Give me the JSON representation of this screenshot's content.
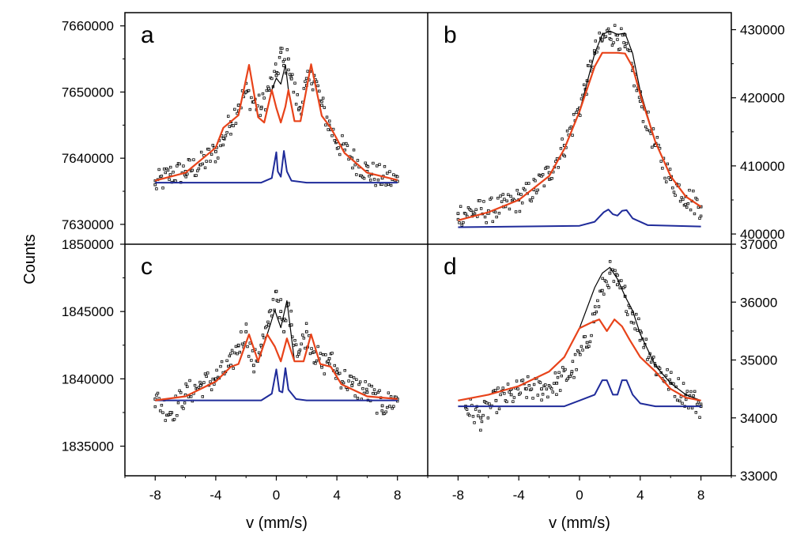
{
  "figure": {
    "ylabel": "Counts",
    "xlabel_left": "v (mm/s)",
    "xlabel_right": "v (mm/s)"
  },
  "colors": {
    "data_points": "#000000",
    "total_fit": "#000000",
    "main_component": "#e8431a",
    "doublet_component": "#1f2b9a"
  },
  "chart_data": [
    {
      "type": "scatter",
      "panel": "a",
      "panel_label": "a",
      "xlim": [
        -10,
        10
      ],
      "ylim": [
        7627000,
        7662000
      ],
      "yticks": [
        7630000,
        7640000,
        7650000,
        7660000
      ],
      "ytick_labels": [
        "7630000",
        "7640000",
        "7650000",
        "7660000"
      ],
      "xticks": [
        -8,
        -4,
        0,
        4,
        8
      ],
      "xtick_labels": [
        "-8",
        "-4",
        "0",
        "4",
        "8"
      ],
      "series": [
        {
          "role": "data",
          "x": [
            -8,
            -7,
            -6,
            -5,
            -4,
            -3.5,
            -3,
            -2.5,
            -2,
            -1.5,
            -1,
            -0.5,
            0,
            0.3,
            0.5,
            0.8,
            1,
            1.5,
            2,
            2.5,
            3,
            3.5,
            4,
            5,
            6,
            7,
            8
          ],
          "y": [
            7636000,
            7637500,
            7638000,
            7639000,
            7641000,
            7643000,
            7645500,
            7648000,
            7650000,
            7648500,
            7647500,
            7650500,
            7652500,
            7656000,
            7654000,
            7655000,
            7652000,
            7647500,
            7651000,
            7652500,
            7648000,
            7645000,
            7642500,
            7640000,
            7638000,
            7637000,
            7636500
          ]
        },
        {
          "role": "total_fit",
          "x": [
            -8,
            -6,
            -4,
            -3.5,
            -2.5,
            -1.8,
            -1.2,
            -0.8,
            -0.3,
            0,
            0.3,
            0.6,
            0.8,
            1.2,
            1.6,
            2.3,
            3,
            3.6,
            4.5,
            6,
            8
          ],
          "y": [
            7636600,
            7637800,
            7641600,
            7644600,
            7646500,
            7654100,
            7646200,
            7645400,
            7650300,
            7652100,
            7651200,
            7654100,
            7650300,
            7645600,
            7645600,
            7654200,
            7646400,
            7644600,
            7640800,
            7637800,
            7636700
          ]
        },
        {
          "role": "main_component",
          "x": [
            -8,
            -6,
            -4,
            -3.5,
            -2.5,
            -1.8,
            -1.2,
            -0.8,
            -0.3,
            0,
            0.3,
            0.6,
            0.8,
            1.2,
            1.6,
            2.3,
            3,
            3.6,
            4.5,
            6,
            8
          ],
          "y": [
            7636600,
            7637800,
            7641600,
            7644600,
            7646500,
            7654100,
            7646200,
            7645400,
            7650300,
            7647600,
            7645400,
            7647800,
            7650300,
            7645600,
            7645600,
            7654200,
            7646400,
            7644600,
            7640800,
            7637800,
            7636700
          ]
        },
        {
          "role": "doublet_component",
          "x": [
            -8,
            -1,
            -0.3,
            0,
            0.1,
            0.3,
            0.5,
            0.7,
            1,
            2,
            8
          ],
          "y": [
            7636300,
            7636300,
            7637000,
            7640900,
            7638000,
            7637200,
            7641100,
            7638000,
            7636600,
            7636300,
            7636300
          ]
        }
      ]
    },
    {
      "type": "scatter",
      "panel": "b",
      "panel_label": "b",
      "xlim": [
        -10,
        10
      ],
      "ylim": [
        398500,
        432500
      ],
      "yticks": [
        400000,
        410000,
        420000,
        430000
      ],
      "ytick_labels": [
        "400000",
        "410000",
        "420000",
        "430000"
      ],
      "xticks": [
        -8,
        -4,
        0,
        4,
        8
      ],
      "xtick_labels": [
        "-8",
        "-4",
        "0",
        "4",
        "8"
      ],
      "series": [
        {
          "role": "data",
          "x": [
            -8,
            -7,
            -6,
            -5,
            -4,
            -3,
            -2,
            -1,
            0,
            0.5,
            1,
            1.5,
            2,
            2.5,
            3,
            3.5,
            4,
            5,
            6,
            7,
            8
          ],
          "y": [
            403000,
            403200,
            403400,
            404000,
            405000,
            406500,
            409000,
            413000,
            418500,
            422500,
            426500,
            428500,
            429500,
            429200,
            427500,
            424000,
            419500,
            413000,
            408000,
            405500,
            404000
          ]
        },
        {
          "role": "total_fit",
          "x": [
            -8,
            -6,
            -4,
            -2,
            -1,
            0,
            1,
            1.5,
            2,
            2.5,
            3,
            3.5,
            4,
            5,
            6,
            7,
            8
          ],
          "y": [
            402000,
            403200,
            405000,
            408500,
            412500,
            418000,
            426500,
            429300,
            429800,
            429300,
            429500,
            426500,
            421000,
            413500,
            408500,
            405500,
            404000
          ]
        },
        {
          "role": "main_component",
          "x": [
            -8,
            -6,
            -4,
            -2,
            -1,
            0,
            1,
            1.5,
            2,
            2.5,
            3,
            3.5,
            4,
            5,
            6,
            7,
            8
          ],
          "y": [
            402000,
            403200,
            405000,
            408500,
            412500,
            418000,
            424600,
            426600,
            426600,
            426600,
            426500,
            424500,
            420500,
            413500,
            408500,
            405500,
            404000
          ]
        },
        {
          "role": "doublet_component",
          "x": [
            -8,
            0,
            1,
            1.6,
            1.9,
            2.2,
            2.5,
            2.8,
            3.1,
            3.5,
            4.5,
            8
          ],
          "y": [
            401000,
            401200,
            401800,
            403200,
            403600,
            402900,
            402700,
            403400,
            403500,
            402300,
            401300,
            401100
          ]
        }
      ]
    },
    {
      "type": "scatter",
      "panel": "c",
      "panel_label": "c",
      "xlim": [
        -10,
        10
      ],
      "ylim": [
        1832800,
        1850000
      ],
      "yticks": [
        1835000,
        1840000,
        1845000,
        1850000
      ],
      "ytick_labels": [
        "1835000",
        "1840000",
        "1845000",
        "1850000"
      ],
      "xticks": [
        -8,
        -4,
        0,
        4,
        8
      ],
      "xtick_labels": [
        "-8",
        "-4",
        "0",
        "4",
        "8"
      ],
      "series": [
        {
          "role": "data",
          "x": [
            -8,
            -7,
            -6,
            -5,
            -4,
            -3,
            -2.5,
            -2,
            -1.5,
            -1,
            -0.5,
            0,
            0.3,
            0.5,
            0.8,
            1,
            1.5,
            2,
            2.5,
            3,
            3.5,
            4,
            5,
            6,
            7,
            8
          ],
          "y": [
            1838500,
            1837500,
            1838800,
            1839500,
            1840000,
            1841000,
            1842500,
            1843500,
            1841000,
            1842500,
            1844000,
            1846500,
            1845000,
            1843500,
            1845500,
            1844000,
            1842000,
            1843500,
            1842000,
            1841000,
            1841500,
            1840500,
            1839500,
            1839000,
            1838000,
            1838500
          ]
        },
        {
          "role": "total_fit",
          "x": [
            -8,
            -6,
            -4,
            -3,
            -2.5,
            -1.8,
            -1.2,
            -0.6,
            -0.1,
            0.3,
            0.7,
            1.2,
            1.8,
            2.3,
            2.9,
            3.6,
            4.3,
            6,
            8
          ],
          "y": [
            1838400,
            1838700,
            1839800,
            1840900,
            1841100,
            1843300,
            1841300,
            1843300,
            1845100,
            1843800,
            1845800,
            1841300,
            1841300,
            1843300,
            1841100,
            1840900,
            1839600,
            1838700,
            1838500
          ]
        },
        {
          "role": "main_component",
          "x": [
            -8,
            -6,
            -4,
            -3,
            -2.5,
            -1.8,
            -1.2,
            -0.6,
            -0.1,
            0.3,
            0.7,
            1.2,
            1.8,
            2.3,
            2.9,
            3.6,
            4.3,
            6,
            8
          ],
          "y": [
            1838400,
            1838700,
            1839800,
            1840900,
            1841100,
            1843300,
            1841300,
            1843300,
            1842400,
            1841300,
            1843000,
            1841300,
            1841300,
            1843300,
            1841100,
            1840900,
            1839600,
            1838700,
            1838500
          ]
        },
        {
          "role": "doublet_component",
          "x": [
            -8,
            -1,
            -0.3,
            0,
            0.2,
            0.4,
            0.6,
            0.8,
            1.3,
            2,
            8
          ],
          "y": [
            1838400,
            1838400,
            1838900,
            1840700,
            1839100,
            1839000,
            1840800,
            1839200,
            1838500,
            1838400,
            1838400
          ]
        }
      ]
    },
    {
      "type": "scatter",
      "panel": "d",
      "panel_label": "d",
      "xlim": [
        -10,
        10
      ],
      "ylim": [
        33000,
        37000
      ],
      "yticks": [
        33000,
        34000,
        35000,
        36000,
        37000
      ],
      "ytick_labels": [
        "33000",
        "34000",
        "35000",
        "36000",
        "37000"
      ],
      "xticks": [
        -8,
        -4,
        0,
        4,
        8
      ],
      "xtick_labels": [
        "-8",
        "-4",
        "0",
        "4",
        "8"
      ],
      "series": [
        {
          "role": "data",
          "x": [
            -7.5,
            -6.5,
            -5.5,
            -4.5,
            -3.5,
            -2.5,
            -1.5,
            -0.5,
            0.5,
            1,
            1.5,
            2,
            2.5,
            3,
            3.5,
            4,
            5,
            6,
            7,
            8
          ],
          "y": [
            34200,
            34000,
            34300,
            34400,
            34500,
            34500,
            34600,
            34800,
            35300,
            35800,
            36200,
            36500,
            36300,
            36100,
            35800,
            35500,
            34900,
            34600,
            34400,
            34200
          ]
        },
        {
          "role": "total_fit",
          "x": [
            -8,
            -6,
            -4,
            -2,
            -1,
            0,
            1,
            1.5,
            2,
            2.5,
            3,
            3.5,
            4,
            5,
            6,
            7,
            8
          ],
          "y": [
            34300,
            34400,
            34550,
            34800,
            35050,
            35550,
            36250,
            36500,
            36600,
            36400,
            36100,
            35850,
            35450,
            34900,
            34600,
            34400,
            34300
          ]
        },
        {
          "role": "main_component",
          "x": [
            -8,
            -6,
            -4,
            -2,
            -1,
            0,
            0.8,
            1.3,
            1.8,
            2.3,
            2.8,
            3.3,
            4,
            5,
            6,
            7,
            8
          ],
          "y": [
            34300,
            34400,
            34550,
            34800,
            35050,
            35550,
            35650,
            35700,
            35500,
            35700,
            35580,
            35350,
            35050,
            34800,
            34500,
            34350,
            34300
          ]
        },
        {
          "role": "doublet_component",
          "x": [
            -8,
            -1,
            0,
            1,
            1.5,
            1.8,
            2.2,
            2.5,
            2.8,
            3.1,
            3.5,
            4,
            5,
            8
          ],
          "y": [
            34200,
            34200,
            34300,
            34400,
            34650,
            34650,
            34400,
            34400,
            34650,
            34650,
            34400,
            34250,
            34200,
            34200
          ]
        }
      ]
    }
  ]
}
